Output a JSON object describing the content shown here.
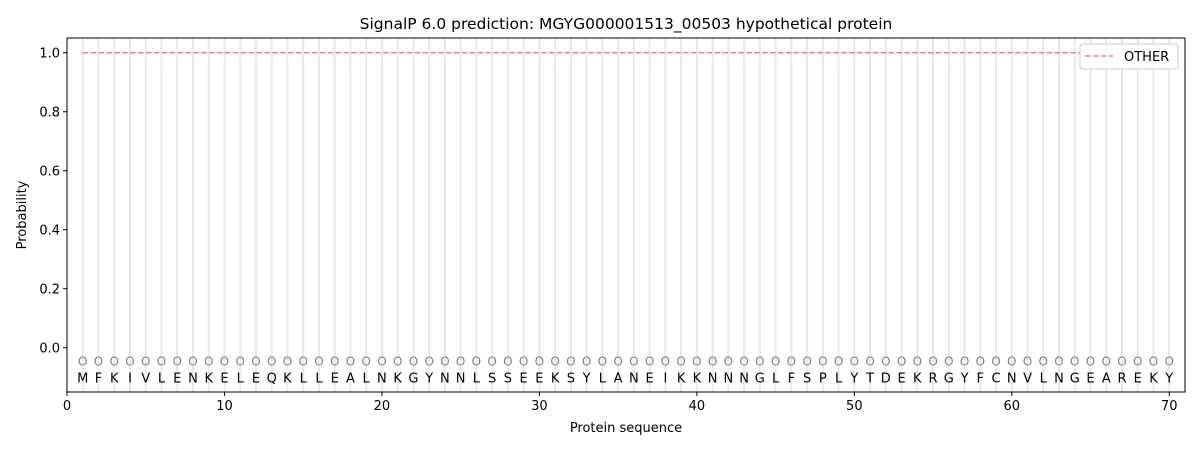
{
  "chart_data": {
    "type": "line",
    "title": "SignalP 6.0 prediction: MGYG000001513_00503 hypothetical protein",
    "xlabel": "Protein sequence",
    "ylabel": "Probability",
    "xlim": [
      0,
      71
    ],
    "ylim": [
      -0.15,
      1.05
    ],
    "xticks": [
      0,
      10,
      20,
      30,
      40,
      50,
      60,
      70
    ],
    "yticks": [
      "0.0",
      "0.2",
      "0.4",
      "0.6",
      "0.8",
      "1.0"
    ],
    "grid": "vertical per residue",
    "legend_position": "top-right",
    "sequence": [
      "M",
      "F",
      "K",
      "I",
      "V",
      "L",
      "E",
      "N",
      "K",
      "E",
      "L",
      "E",
      "Q",
      "K",
      "L",
      "L",
      "E",
      "A",
      "L",
      "N",
      "K",
      "G",
      "Y",
      "N",
      "N",
      "L",
      "S",
      "S",
      "E",
      "E",
      "K",
      "S",
      "Y",
      "L",
      "A",
      "N",
      "E",
      "I",
      "K",
      "K",
      "N",
      "N",
      "N",
      "G",
      "L",
      "F",
      "S",
      "P",
      "L",
      "Y",
      "T",
      "D",
      "E",
      "K",
      "R",
      "G",
      "Y",
      "F",
      "C",
      "N",
      "V",
      "L",
      "N",
      "G",
      "E",
      "A",
      "R",
      "E",
      "K",
      "Y"
    ],
    "predicted_label": "O",
    "series": [
      {
        "name": "OTHER",
        "color": "#f08080",
        "style": "dashed",
        "x_range": [
          1,
          70
        ],
        "value": 1.0
      }
    ]
  }
}
